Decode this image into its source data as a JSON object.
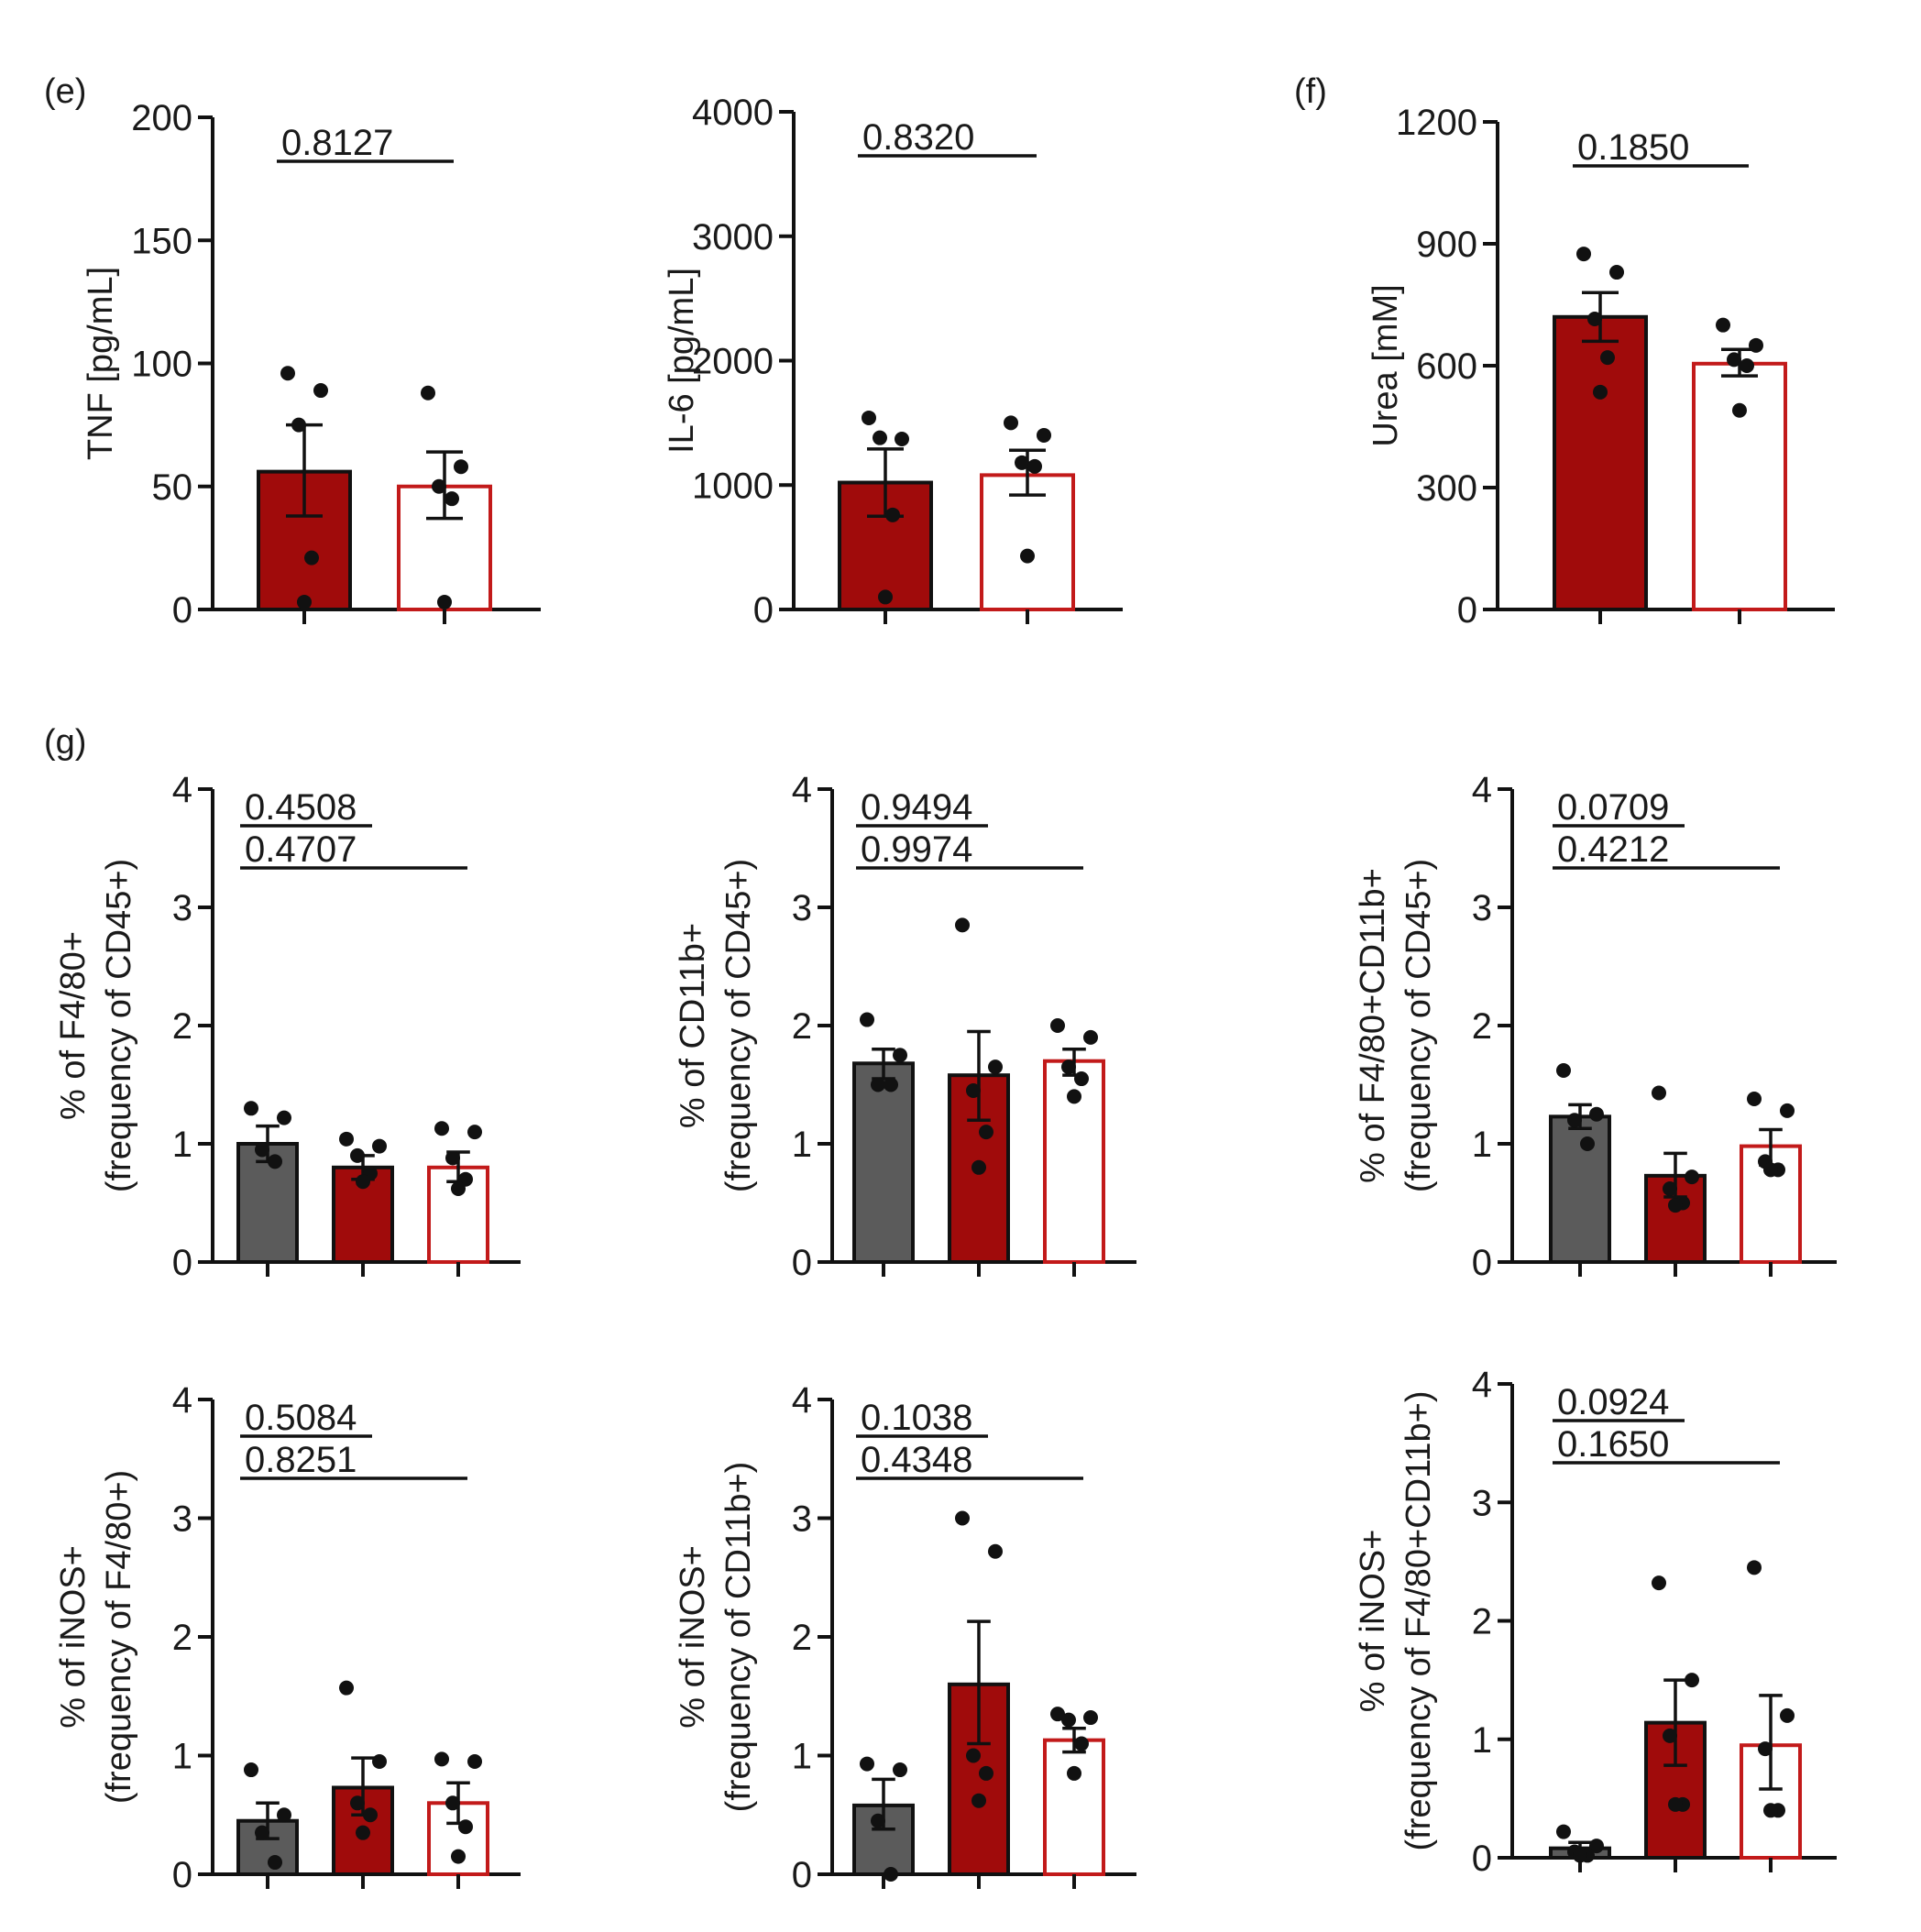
{
  "colors": {
    "dark_gray": "#5b5b5b",
    "dark_red": "#a00b0b",
    "red_outline": "#c21a1a",
    "white": "#ffffff",
    "ink": "#111111"
  },
  "panel_labels": [
    "(e)",
    "(f)",
    "(g)"
  ],
  "chart_data": [
    {
      "type": "bar",
      "panel": "(e)",
      "ylabel": "TNF  [pg/mL]",
      "ylim": [
        0,
        200
      ],
      "yticks": [
        "0",
        "50",
        "100",
        "150",
        "200"
      ],
      "groups": [
        {
          "style": "dark_red",
          "mean": 56,
          "sem_low": 38,
          "sem_high": 75,
          "points": [
            96,
            89,
            75,
            21,
            3
          ]
        },
        {
          "style": "white_red",
          "mean": 50,
          "sem_low": 37,
          "sem_high": 64,
          "points": [
            88,
            58,
            50,
            45,
            3
          ]
        }
      ],
      "pvalues": [
        {
          "label": "0.8127",
          "from": 0,
          "to": 1
        }
      ]
    },
    {
      "type": "bar",
      "panel": "",
      "ylabel": "IL-6 [pg/mL]",
      "ylim": [
        0,
        4000
      ],
      "yticks": [
        "0",
        "1000",
        "2000",
        "3000",
        "4000"
      ],
      "groups": [
        {
          "style": "dark_red",
          "mean": 1020,
          "sem_low": 750,
          "sem_high": 1290,
          "points": [
            1540,
            1370,
            1380,
            760,
            100
          ]
        },
        {
          "style": "white_red",
          "mean": 1080,
          "sem_low": 920,
          "sem_high": 1280,
          "points": [
            1500,
            1400,
            1180,
            1150,
            430
          ]
        }
      ],
      "pvalues": [
        {
          "label": "0.8320",
          "from": 0,
          "to": 1
        }
      ]
    },
    {
      "type": "bar",
      "panel": "(f)",
      "ylabel": "Urea [mM]",
      "ylim": [
        0,
        1200
      ],
      "yticks": [
        "0",
        "300",
        "600",
        "900",
        "1200"
      ],
      "groups": [
        {
          "style": "dark_red",
          "mean": 720,
          "sem_low": 660,
          "sem_high": 780,
          "points": [
            875,
            830,
            715,
            620,
            535
          ]
        },
        {
          "style": "white_red",
          "mean": 605,
          "sem_low": 575,
          "sem_high": 640,
          "points": [
            700,
            650,
            615,
            600,
            490
          ]
        }
      ],
      "pvalues": [
        {
          "label": "0.1850",
          "from": 0,
          "to": 1
        }
      ]
    },
    {
      "type": "bar",
      "panel": "(g)",
      "ylabel": "% of F4/80+",
      "ylabel2": "(frequency of CD45+)",
      "ylim": [
        0,
        4
      ],
      "yticks": [
        "0",
        "1",
        "2",
        "3",
        "4"
      ],
      "groups": [
        {
          "style": "gray",
          "mean": 1.0,
          "sem_low": 0.85,
          "sem_high": 1.15,
          "points": [
            1.3,
            1.22,
            0.95,
            0.85
          ]
        },
        {
          "style": "dark_red",
          "mean": 0.8,
          "sem_low": 0.7,
          "sem_high": 0.9,
          "points": [
            1.04,
            0.98,
            0.9,
            0.75,
            0.68
          ]
        },
        {
          "style": "white_red",
          "mean": 0.8,
          "sem_low": 0.68,
          "sem_high": 0.93,
          "points": [
            1.13,
            1.1,
            0.88,
            0.7,
            0.62
          ]
        }
      ],
      "pvalues": [
        {
          "label": "0.4508",
          "from": 0,
          "to": 1
        },
        {
          "label": "0.4707",
          "from": 0,
          "to": 2
        }
      ]
    },
    {
      "type": "bar",
      "panel": "",
      "ylabel": "% of CD11b+",
      "ylabel2": "(frequency of CD45+)",
      "ylim": [
        0,
        4
      ],
      "yticks": [
        "0",
        "1",
        "2",
        "3",
        "4"
      ],
      "groups": [
        {
          "style": "gray",
          "mean": 1.68,
          "sem_low": 1.55,
          "sem_high": 1.8,
          "points": [
            2.05,
            1.75,
            1.5,
            1.5
          ]
        },
        {
          "style": "dark_red",
          "mean": 1.58,
          "sem_low": 1.2,
          "sem_high": 1.95,
          "points": [
            2.85,
            1.65,
            1.45,
            1.1,
            0.8
          ]
        },
        {
          "style": "white_red",
          "mean": 1.7,
          "sem_low": 1.58,
          "sem_high": 1.8,
          "points": [
            2.0,
            1.9,
            1.65,
            1.55,
            1.4
          ]
        }
      ],
      "pvalues": [
        {
          "label": "0.9494",
          "from": 0,
          "to": 1
        },
        {
          "label": "0.9974",
          "from": 0,
          "to": 2
        }
      ]
    },
    {
      "type": "bar",
      "panel": "",
      "ylabel": "% of F4/80+CD11b+",
      "ylabel2": "(frequency of CD45+)",
      "ylim": [
        0,
        4
      ],
      "yticks": [
        "0",
        "1",
        "2",
        "3",
        "4"
      ],
      "groups": [
        {
          "style": "gray",
          "mean": 1.23,
          "sem_low": 1.13,
          "sem_high": 1.33,
          "points": [
            1.62,
            1.25,
            1.2,
            1.0
          ]
        },
        {
          "style": "dark_red",
          "mean": 0.73,
          "sem_low": 0.55,
          "sem_high": 0.92,
          "points": [
            1.43,
            0.72,
            0.62,
            0.5,
            0.48
          ]
        },
        {
          "style": "white_red",
          "mean": 0.98,
          "sem_low": 0.82,
          "sem_high": 1.12,
          "points": [
            1.38,
            1.28,
            0.85,
            0.78,
            0.78
          ]
        }
      ],
      "pvalues": [
        {
          "label": "0.0709",
          "from": 0,
          "to": 1
        },
        {
          "label": "0.4212",
          "from": 0,
          "to": 2
        }
      ]
    },
    {
      "type": "bar",
      "panel": "",
      "ylabel": "% of iNOS+",
      "ylabel2": "(frequency of F4/80+)",
      "ylim": [
        0,
        4
      ],
      "yticks": [
        "0",
        "1",
        "2",
        "3",
        "4"
      ],
      "groups": [
        {
          "style": "gray",
          "mean": 0.45,
          "sem_low": 0.3,
          "sem_high": 0.6,
          "points": [
            0.88,
            0.5,
            0.35,
            0.1
          ]
        },
        {
          "style": "dark_red",
          "mean": 0.73,
          "sem_low": 0.5,
          "sem_high": 0.98,
          "points": [
            1.57,
            0.95,
            0.6,
            0.5,
            0.35
          ]
        },
        {
          "style": "white_red",
          "mean": 0.6,
          "sem_low": 0.43,
          "sem_high": 0.77,
          "points": [
            0.97,
            0.95,
            0.6,
            0.4,
            0.15
          ]
        }
      ],
      "pvalues": [
        {
          "label": "0.5084",
          "from": 0,
          "to": 1
        },
        {
          "label": "0.8251",
          "from": 0,
          "to": 2
        }
      ]
    },
    {
      "type": "bar",
      "panel": "",
      "ylabel": "% of iNOS+",
      "ylabel2": "(frequency of CD11b+)",
      "ylim": [
        0,
        4
      ],
      "yticks": [
        "0",
        "1",
        "2",
        "3",
        "4"
      ],
      "groups": [
        {
          "style": "gray",
          "mean": 0.58,
          "sem_low": 0.38,
          "sem_high": 0.8,
          "points": [
            0.93,
            0.88,
            0.45,
            0.0
          ]
        },
        {
          "style": "dark_red",
          "mean": 1.6,
          "sem_low": 1.1,
          "sem_high": 2.13,
          "points": [
            3.0,
            2.72,
            1.0,
            0.85,
            0.62
          ]
        },
        {
          "style": "white_red",
          "mean": 1.13,
          "sem_low": 1.03,
          "sem_high": 1.23,
          "points": [
            1.35,
            1.32,
            1.3,
            1.1,
            0.85
          ]
        }
      ],
      "pvalues": [
        {
          "label": "0.1038",
          "from": 0,
          "to": 1
        },
        {
          "label": "0.4348",
          "from": 0,
          "to": 2
        }
      ]
    },
    {
      "type": "bar",
      "panel": "",
      "ylabel": "% of iNOS+",
      "ylabel2": "(frequency of F4/80+CD11b+)",
      "ylim": [
        0,
        4
      ],
      "yticks": [
        "0",
        "1",
        "2",
        "3",
        "4"
      ],
      "groups": [
        {
          "style": "gray",
          "mean": 0.08,
          "sem_low": 0.04,
          "sem_high": 0.13,
          "points": [
            0.22,
            0.1,
            0.05,
            0.02,
            0.02
          ]
        },
        {
          "style": "dark_red",
          "mean": 1.14,
          "sem_low": 0.78,
          "sem_high": 1.5,
          "points": [
            2.32,
            1.5,
            1.03,
            0.45,
            0.45
          ]
        },
        {
          "style": "white_red",
          "mean": 0.95,
          "sem_low": 0.58,
          "sem_high": 1.37,
          "points": [
            2.45,
            1.2,
            0.92,
            0.4,
            0.4
          ]
        }
      ],
      "pvalues": [
        {
          "label": "0.0924",
          "from": 0,
          "to": 1
        },
        {
          "label": "0.1650",
          "from": 0,
          "to": 2
        }
      ]
    }
  ]
}
